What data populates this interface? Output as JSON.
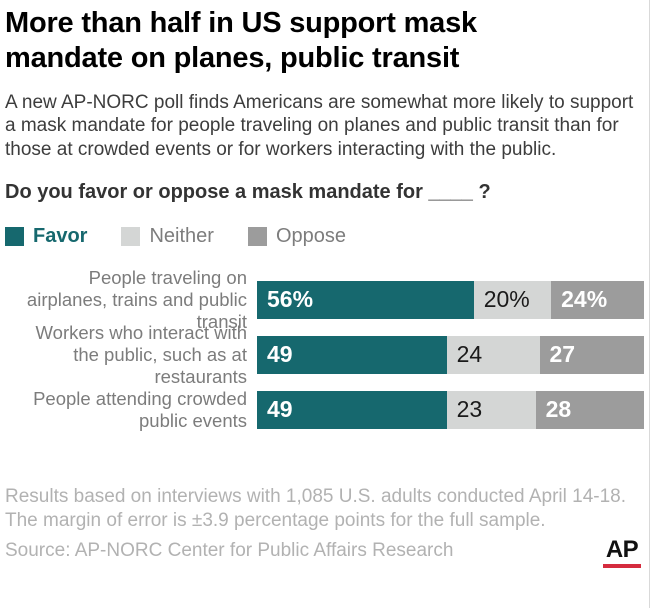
{
  "header": {
    "title": "More than half in US support mask mandate on planes, public transit",
    "subtitle": "A new AP-NORC poll finds Americans are somewhat more likely to support a mask mandate for people traveling on planes and public transit than for those at crowded events or for workers interacting with the public.",
    "question": "Do you favor or oppose a mask mandate for ____ ?"
  },
  "legend": [
    {
      "label": "Favor",
      "color": "#16686e",
      "text_color": "#16686e"
    },
    {
      "label": "Neither",
      "color": "#d4d6d5",
      "text_color": "#7d7d7d"
    },
    {
      "label": "Oppose",
      "color": "#9c9c9c",
      "text_color": "#7d7d7d"
    }
  ],
  "chart_data": {
    "type": "bar",
    "orientation": "horizontal",
    "stacked": true,
    "xlim": [
      0,
      100
    ],
    "grid": false,
    "legend_position": "top-left",
    "categories": [
      "People traveling on airplanes, trains and public transit",
      "Workers who interact with the public, such as at restaurants",
      "People attending crowded public events"
    ],
    "series": [
      {
        "name": "Favor",
        "color": "#16686e",
        "values": [
          56,
          49,
          49
        ]
      },
      {
        "name": "Neither",
        "color": "#d4d6d5",
        "values": [
          20,
          24,
          23
        ]
      },
      {
        "name": "Oppose",
        "color": "#9c9c9c",
        "values": [
          24,
          27,
          28
        ]
      }
    ],
    "value_labels": [
      [
        "56%",
        "20%",
        "24%"
      ],
      [
        "49",
        "24",
        "27"
      ],
      [
        "49",
        "23",
        "28"
      ]
    ]
  },
  "footer": {
    "note": "Results based on interviews with 1,085 U.S. adults conducted April 14-18. The margin of error is ±3.9 percentage points for the full sample.",
    "source": "Source: AP-NORC Center for Public Affairs Research",
    "logo_text": "AP",
    "logo_bar_color": "#d52b3e"
  }
}
